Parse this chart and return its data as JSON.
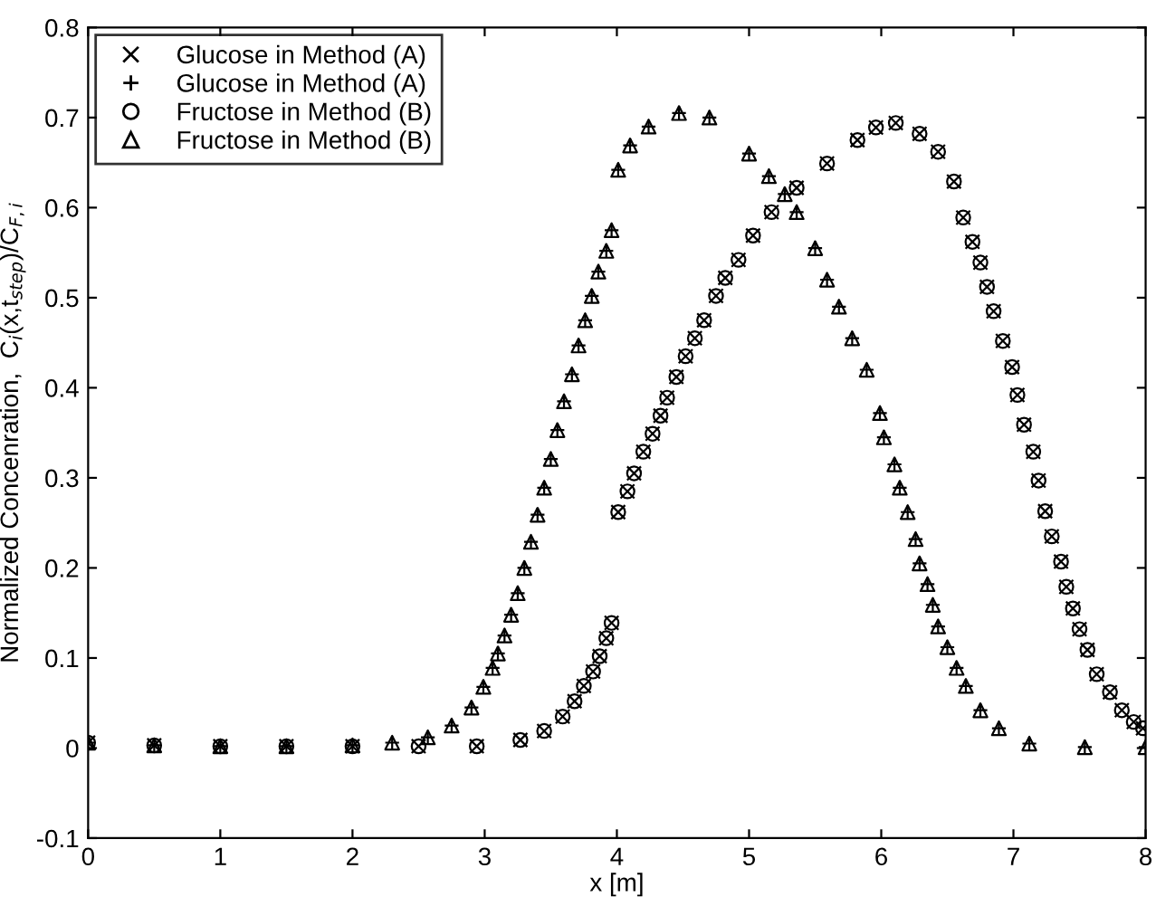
{
  "chart_data": {
    "type": "scatter",
    "xlabel": "x [m]",
    "ylabel": "Normalized Concenration,  C$_{i}$(x,t$_{step}$)/C$_{F,i}$",
    "xlim": [
      0,
      8
    ],
    "ylim": [
      -0.1,
      0.8
    ],
    "xticks": [
      0,
      1,
      2,
      3,
      4,
      5,
      6,
      7,
      8
    ],
    "yticks": [
      {
        "value": -0.1,
        "label": "-0.1"
      },
      0,
      0.1,
      0.2,
      0.3,
      0.4,
      0.5,
      0.6,
      0.7,
      0.8
    ],
    "grid": false,
    "legend": "top left",
    "series": [
      {
        "name": "Glucose in Method (A)",
        "color": "#000000",
        "marker": "cross",
        "x": [
          0,
          0.5,
          1,
          1.5,
          2,
          2.5,
          2.94,
          3.27,
          3.45,
          3.59,
          3.68,
          3.75,
          3.82,
          3.87,
          3.92,
          3.96,
          4.01,
          4.08,
          4.13,
          4.2,
          4.27,
          4.33,
          4.38,
          4.45,
          4.52,
          4.59,
          4.66,
          4.75,
          4.82,
          4.92,
          5.03,
          5.17,
          5.36,
          5.59,
          5.82,
          5.96,
          6.11,
          6.29,
          6.43,
          6.55,
          6.62,
          6.69,
          6.75,
          6.8,
          6.85,
          6.92,
          6.99,
          7.03,
          7.08,
          7.15,
          7.19,
          7.24,
          7.29,
          7.36,
          7.4,
          7.45,
          7.5,
          7.56,
          7.63,
          7.73,
          7.82,
          7.91,
          7.98
        ],
        "values": [
          0.006,
          0.003,
          0.002,
          0.002,
          0.002,
          0.002,
          0.002,
          0.009,
          0.019,
          0.035,
          0.052,
          0.069,
          0.085,
          0.102,
          0.122,
          0.139,
          0.262,
          0.285,
          0.305,
          0.329,
          0.349,
          0.369,
          0.389,
          0.412,
          0.435,
          0.455,
          0.475,
          0.502,
          0.522,
          0.542,
          0.569,
          0.595,
          0.622,
          0.649,
          0.675,
          0.689,
          0.694,
          0.682,
          0.662,
          0.629,
          0.589,
          0.562,
          0.539,
          0.512,
          0.485,
          0.452,
          0.423,
          0.392,
          0.359,
          0.329,
          0.297,
          0.263,
          0.235,
          0.207,
          0.179,
          0.155,
          0.132,
          0.109,
          0.082,
          0.062,
          0.042,
          0.029,
          0.022
        ]
      },
      {
        "name": "Glucose in Method (A)",
        "color": "#000000",
        "marker": "plus",
        "x": [
          0,
          0.5,
          1,
          1.5,
          2,
          2.3,
          2.57,
          2.75,
          2.9,
          2.99,
          3.06,
          3.1,
          3.15,
          3.2,
          3.25,
          3.3,
          3.35,
          3.4,
          3.45,
          3.5,
          3.55,
          3.6,
          3.66,
          3.71,
          3.76,
          3.81,
          3.86,
          3.92,
          3.96,
          4.01,
          4.1,
          4.24,
          4.47,
          4.7,
          5.0,
          5.15,
          5.27,
          5.36,
          5.5,
          5.59,
          5.68,
          5.78,
          5.89,
          5.99,
          6.02,
          6.1,
          6.14,
          6.2,
          6.26,
          6.29,
          6.35,
          6.39,
          6.43,
          6.5,
          6.57,
          6.64,
          6.75,
          6.89,
          7.12,
          7.54,
          8.0
        ],
        "values": [
          0.006,
          0.003,
          0.002,
          0.002,
          0.003,
          0.006,
          0.012,
          0.025,
          0.045,
          0.068,
          0.089,
          0.105,
          0.125,
          0.148,
          0.172,
          0.2,
          0.229,
          0.259,
          0.289,
          0.321,
          0.353,
          0.385,
          0.415,
          0.447,
          0.475,
          0.502,
          0.529,
          0.552,
          0.575,
          0.642,
          0.669,
          0.69,
          0.705,
          0.7,
          0.66,
          0.635,
          0.615,
          0.595,
          0.555,
          0.52,
          0.49,
          0.455,
          0.42,
          0.372,
          0.345,
          0.315,
          0.289,
          0.262,
          0.232,
          0.205,
          0.182,
          0.159,
          0.135,
          0.112,
          0.089,
          0.069,
          0.042,
          0.022,
          0.005,
          0.001,
          0.001
        ]
      },
      {
        "name": "Fructose in Method (B)",
        "color": "#000000",
        "marker": "circle",
        "x": [
          0,
          0.5,
          1,
          1.5,
          2,
          2.5,
          2.94,
          3.27,
          3.45,
          3.59,
          3.68,
          3.75,
          3.82,
          3.87,
          3.92,
          3.96,
          4.01,
          4.08,
          4.13,
          4.2,
          4.27,
          4.33,
          4.38,
          4.45,
          4.52,
          4.59,
          4.66,
          4.75,
          4.82,
          4.92,
          5.03,
          5.17,
          5.36,
          5.59,
          5.82,
          5.96,
          6.11,
          6.29,
          6.43,
          6.55,
          6.62,
          6.69,
          6.75,
          6.8,
          6.85,
          6.92,
          6.99,
          7.03,
          7.08,
          7.15,
          7.19,
          7.24,
          7.29,
          7.36,
          7.4,
          7.45,
          7.5,
          7.56,
          7.63,
          7.73,
          7.82,
          7.91,
          7.98
        ],
        "values": [
          0.006,
          0.003,
          0.002,
          0.002,
          0.002,
          0.002,
          0.002,
          0.009,
          0.019,
          0.035,
          0.052,
          0.069,
          0.085,
          0.102,
          0.122,
          0.139,
          0.262,
          0.285,
          0.305,
          0.329,
          0.349,
          0.369,
          0.389,
          0.412,
          0.435,
          0.455,
          0.475,
          0.502,
          0.522,
          0.542,
          0.569,
          0.595,
          0.622,
          0.649,
          0.675,
          0.689,
          0.694,
          0.682,
          0.662,
          0.629,
          0.589,
          0.562,
          0.539,
          0.512,
          0.485,
          0.452,
          0.423,
          0.392,
          0.359,
          0.329,
          0.297,
          0.263,
          0.235,
          0.207,
          0.179,
          0.155,
          0.132,
          0.109,
          0.082,
          0.062,
          0.042,
          0.029,
          0.022
        ]
      },
      {
        "name": "Fructose in Method (B)",
        "color": "#000000",
        "marker": "triangle",
        "x": [
          0,
          0.5,
          1,
          1.5,
          2,
          2.3,
          2.57,
          2.75,
          2.9,
          2.99,
          3.06,
          3.1,
          3.15,
          3.2,
          3.25,
          3.3,
          3.35,
          3.4,
          3.45,
          3.5,
          3.55,
          3.6,
          3.66,
          3.71,
          3.76,
          3.81,
          3.86,
          3.92,
          3.96,
          4.01,
          4.1,
          4.24,
          4.47,
          4.7,
          5.0,
          5.15,
          5.27,
          5.36,
          5.5,
          5.59,
          5.68,
          5.78,
          5.89,
          5.99,
          6.02,
          6.1,
          6.14,
          6.2,
          6.26,
          6.29,
          6.35,
          6.39,
          6.43,
          6.5,
          6.57,
          6.64,
          6.75,
          6.89,
          7.12,
          7.54,
          8.0
        ],
        "values": [
          0.006,
          0.003,
          0.002,
          0.002,
          0.003,
          0.006,
          0.012,
          0.025,
          0.045,
          0.068,
          0.089,
          0.105,
          0.125,
          0.148,
          0.172,
          0.2,
          0.229,
          0.259,
          0.289,
          0.321,
          0.353,
          0.385,
          0.415,
          0.447,
          0.475,
          0.502,
          0.529,
          0.552,
          0.575,
          0.642,
          0.669,
          0.69,
          0.705,
          0.7,
          0.66,
          0.635,
          0.615,
          0.595,
          0.555,
          0.52,
          0.49,
          0.455,
          0.42,
          0.372,
          0.345,
          0.315,
          0.289,
          0.262,
          0.232,
          0.205,
          0.182,
          0.159,
          0.135,
          0.112,
          0.089,
          0.069,
          0.042,
          0.022,
          0.005,
          0.001,
          0.001
        ]
      }
    ]
  }
}
